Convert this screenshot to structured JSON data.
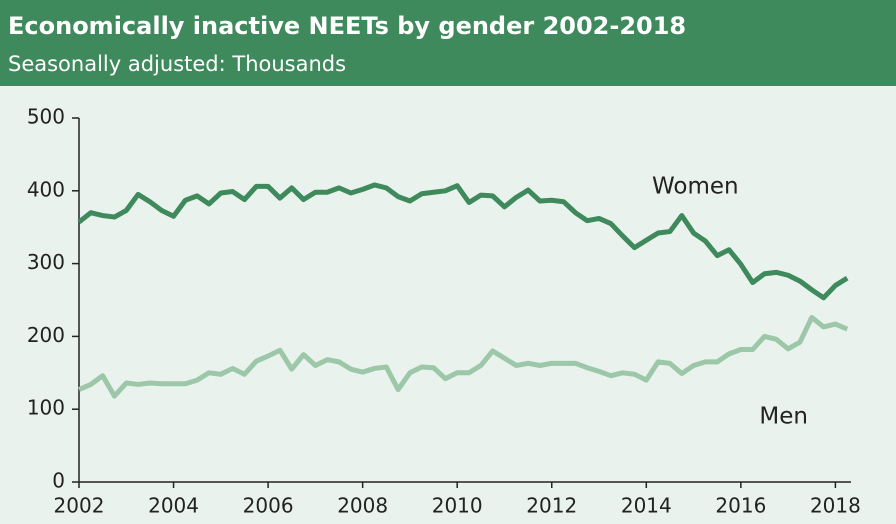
{
  "chart_data": {
    "type": "line",
    "title": "Economically inactive NEETs by gender 2002-2018",
    "subtitle": "Seasonally adjusted: Thousands",
    "x": [
      2002,
      2002.25,
      2002.5,
      2002.75,
      2003,
      2003.25,
      2003.5,
      2003.75,
      2004,
      2004.25,
      2004.5,
      2004.75,
      2005,
      2005.25,
      2005.5,
      2005.75,
      2006,
      2006.25,
      2006.5,
      2006.75,
      2007,
      2007.25,
      2007.5,
      2007.75,
      2008,
      2008.25,
      2008.5,
      2008.75,
      2009,
      2009.25,
      2009.5,
      2009.75,
      2010,
      2010.25,
      2010.5,
      2010.75,
      2011,
      2011.25,
      2011.5,
      2011.75,
      2012,
      2012.25,
      2012.5,
      2012.75,
      2013,
      2013.25,
      2013.5,
      2013.75,
      2014,
      2014.25,
      2014.5,
      2014.75,
      2015,
      2015.25,
      2015.5,
      2015.75,
      2016,
      2016.25,
      2016.5,
      2016.75,
      2017,
      2017.25,
      2017.5,
      2017.75,
      2018,
      2018.25
    ],
    "series": [
      {
        "name": "Women",
        "color": "#3e8a5c",
        "values": [
          357,
          370,
          366,
          364,
          373,
          395,
          385,
          373,
          365,
          387,
          393,
          382,
          397,
          399,
          388,
          406,
          406,
          390,
          404,
          388,
          398,
          398,
          404,
          397,
          402,
          408,
          404,
          392,
          386,
          396,
          398,
          400,
          407,
          384,
          394,
          393,
          378,
          391,
          401,
          386,
          387,
          385,
          370,
          359,
          362,
          355,
          338,
          322,
          332,
          342,
          344,
          366,
          342,
          331,
          311,
          319,
          299,
          274,
          286,
          288,
          284,
          276,
          264,
          253,
          270,
          280
        ]
      },
      {
        "name": "Men",
        "color": "#9cc7a8",
        "values": [
          127,
          134,
          146,
          118,
          136,
          134,
          136,
          135,
          135,
          135,
          140,
          150,
          148,
          156,
          148,
          166,
          173,
          181,
          155,
          175,
          160,
          168,
          165,
          155,
          151,
          156,
          158,
          127,
          150,
          158,
          157,
          142,
          150,
          150,
          160,
          180,
          170,
          160,
          163,
          160,
          163,
          163,
          163,
          157,
          152,
          146,
          150,
          148,
          140,
          165,
          163,
          149,
          160,
          165,
          165,
          176,
          182,
          182,
          200,
          196,
          183,
          192,
          226,
          213,
          217,
          210
        ]
      }
    ],
    "xlim": [
      2002,
      2018.33
    ],
    "xticks": [
      2002,
      2004,
      2006,
      2008,
      2010,
      2012,
      2014,
      2016,
      2018
    ],
    "ylim": [
      0,
      500
    ],
    "yticks": [
      0,
      100,
      200,
      300,
      400,
      500
    ]
  }
}
